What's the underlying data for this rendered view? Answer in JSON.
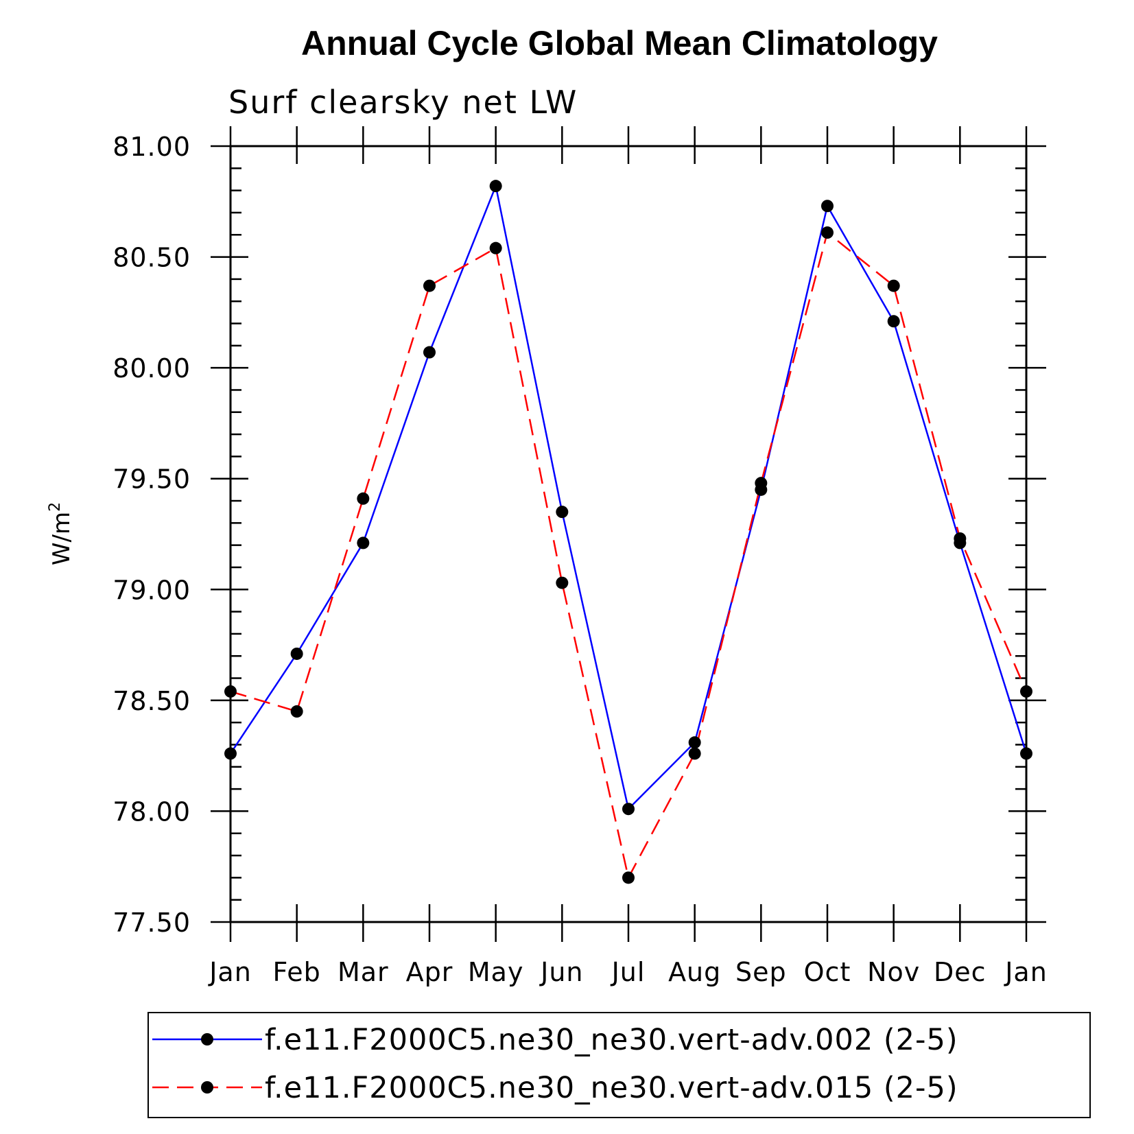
{
  "chart_data": {
    "type": "line",
    "title": "Annual Cycle Global Mean Climatology",
    "subtitle": "Surf clearsky net LW",
    "ylabel": "W/m",
    "ylabel_superscript": "2",
    "xlabel": "",
    "categories": [
      "Jan",
      "Feb",
      "Mar",
      "Apr",
      "May",
      "Jun",
      "Jul",
      "Aug",
      "Sep",
      "Oct",
      "Nov",
      "Dec",
      "Jan"
    ],
    "ylim": [
      77.5,
      81.0
    ],
    "yticks": [
      "77.50",
      "78.00",
      "78.50",
      "79.00",
      "79.50",
      "80.00",
      "80.50",
      "81.00"
    ],
    "series": [
      {
        "name": "f.e11.F2000C5.ne30_ne30.vert-adv.002 (2-5)",
        "color": "#0000ff",
        "dash": "solid",
        "values": [
          78.26,
          78.71,
          79.21,
          80.07,
          80.82,
          79.35,
          78.01,
          78.31,
          79.45,
          80.73,
          80.21,
          79.21,
          78.26
        ]
      },
      {
        "name": "f.e11.F2000C5.ne30_ne30.vert-adv.015 (2-5)",
        "color": "#ff0000",
        "dash": "dashed",
        "values": [
          78.54,
          78.45,
          79.41,
          80.37,
          80.54,
          79.03,
          77.7,
          78.26,
          79.48,
          80.61,
          80.37,
          79.23,
          78.54
        ]
      }
    ],
    "marker_color": "#000000",
    "grid": false,
    "legend_position": "bottom"
  }
}
